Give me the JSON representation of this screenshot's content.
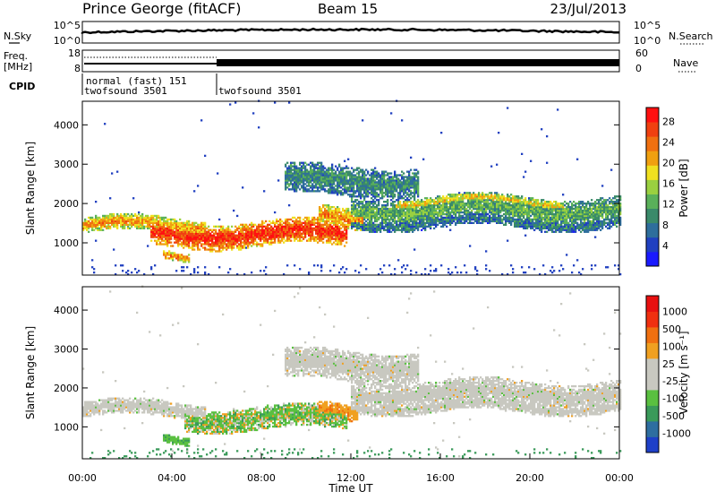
{
  "header": {
    "station": "Prince George (fitACF)",
    "beam": "Beam 15",
    "date": "23/Jul/2013"
  },
  "strip_labels": {
    "nsky": "N.Sky",
    "nsearch": "N.Search",
    "freq_line1": "Freq.",
    "freq_line2": "[MHz]",
    "nave": "Nave",
    "cpid": "CPID",
    "nsky_ticks": [
      "10^5",
      "10^0"
    ],
    "nsearch_ticks": [
      "10^5",
      "10^0"
    ],
    "freq_ticks": [
      "18",
      "8"
    ],
    "nave_ticks": [
      "60",
      "0"
    ]
  },
  "cpid_entries": [
    {
      "text": "normal (fast) 151"
    },
    {
      "text": "twofsound 3501"
    },
    {
      "text": "twofsound 3501"
    }
  ],
  "chart_data": [
    {
      "type": "heatmap",
      "panel": "power",
      "ylabel": "Slant Range [km]",
      "ylim": [
        180,
        4600
      ],
      "y_ticks": [
        1000,
        2000,
        3000,
        4000
      ],
      "xlim_hours": [
        0,
        24
      ],
      "colorbar": {
        "label": "Power [dB]",
        "tick_labels": [
          "4",
          "8",
          "12",
          "16",
          "20",
          "24",
          "28"
        ],
        "colors": [
          "#1a1aff",
          "#2040c0",
          "#2e6e9c",
          "#3a8a6a",
          "#5ab05a",
          "#9ad040",
          "#f0e020",
          "#f0a010",
          "#f07010",
          "#f04010",
          "#ff1010"
        ]
      },
      "bands": [
        {
          "t_start": 0.0,
          "t_end": 5.5,
          "center_km": 1420,
          "width_km": 280,
          "level": 0.72
        },
        {
          "t_start": 3.0,
          "t_end": 11.8,
          "center_km": 1200,
          "width_km": 450,
          "level": 0.95
        },
        {
          "t_start": 3.6,
          "t_end": 4.8,
          "center_km": 650,
          "width_km": 160,
          "level": 0.8
        },
        {
          "t_start": 10.5,
          "t_end": 12.5,
          "center_km": 1600,
          "width_km": 380,
          "level": 0.75
        },
        {
          "t_start": 12.0,
          "t_end": 24.0,
          "center_km": 1820,
          "width_km": 480,
          "level": 0.4
        },
        {
          "t_start": 14.0,
          "t_end": 21.5,
          "center_km": 2020,
          "width_km": 180,
          "level": 0.62
        },
        {
          "t_start": 9.0,
          "t_end": 15.0,
          "center_km": 2550,
          "width_km": 550,
          "level": 0.3
        },
        {
          "t_start": 12.0,
          "t_end": 24.0,
          "center_km": 1500,
          "width_km": 220,
          "level": 0.25
        }
      ]
    },
    {
      "type": "heatmap",
      "panel": "velocity",
      "ylabel": "Slant Range [km]",
      "ylim": [
        180,
        4600
      ],
      "y_ticks": [
        1000,
        2000,
        3000,
        4000
      ],
      "xlim_hours": [
        0,
        24
      ],
      "xlabel": "Time UT",
      "x_tick_labels": [
        "00:00",
        "04:00",
        "08:00",
        "12:00",
        "16:00",
        "20:00",
        "00:00"
      ],
      "colorbar": {
        "label": "Velocity [m s⁻¹]",
        "tick_labels": [
          "1000",
          "500",
          "100",
          "25",
          "-25",
          "-100",
          "-500",
          "-1000"
        ],
        "colors": [
          "#1e40c8",
          "#2e6ea0",
          "#3a9a5a",
          "#5ac040",
          "#c8c8c0",
          "#c8c8c0",
          "#f0a020",
          "#f07010",
          "#f03010",
          "#e81010"
        ]
      },
      "bands": [
        {
          "t_start": 0.0,
          "t_end": 5.5,
          "center_km": 1420,
          "width_km": 280,
          "kind": "gray"
        },
        {
          "t_start": 4.5,
          "t_end": 11.8,
          "center_km": 1200,
          "width_km": 420,
          "kind": "mixed"
        },
        {
          "t_start": 3.6,
          "t_end": 4.8,
          "center_km": 650,
          "width_km": 160,
          "kind": "green"
        },
        {
          "t_start": 10.5,
          "t_end": 12.3,
          "center_km": 1350,
          "width_km": 300,
          "kind": "orange"
        },
        {
          "t_start": 12.0,
          "t_end": 24.0,
          "center_km": 1820,
          "width_km": 480,
          "kind": "gray"
        },
        {
          "t_start": 9.0,
          "t_end": 15.0,
          "center_km": 2550,
          "width_km": 550,
          "kind": "gray"
        },
        {
          "t_start": 12.0,
          "t_end": 24.0,
          "center_km": 1500,
          "width_km": 220,
          "kind": "gray"
        }
      ]
    }
  ]
}
